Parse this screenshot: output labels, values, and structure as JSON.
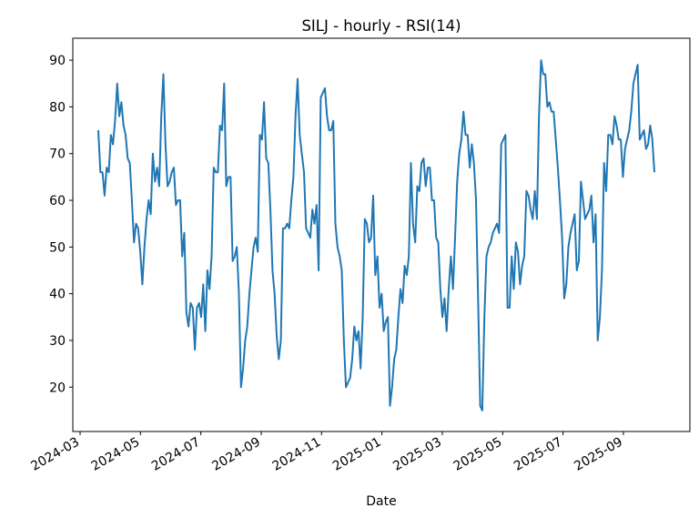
{
  "chart_data": {
    "type": "line",
    "title": "SILJ - hourly - RSI(14)",
    "x_label": "Date",
    "series": [
      {
        "name": "RSI(14)",
        "color": "#1f77b4",
        "values": [
          75,
          66,
          66,
          61,
          67,
          66,
          74,
          72,
          77,
          85,
          78,
          81,
          76,
          74,
          69,
          68,
          60,
          51,
          55,
          54,
          49,
          42,
          50,
          56,
          60,
          57,
          70,
          64,
          67,
          63,
          78,
          87,
          72,
          63,
          64,
          66,
          67,
          59,
          60,
          60,
          48,
          53,
          36,
          33,
          38,
          37,
          28,
          37,
          38,
          35,
          42,
          32,
          45,
          41,
          48,
          67,
          66,
          66,
          76,
          75,
          85,
          63,
          65,
          65,
          47,
          48,
          50,
          40,
          20,
          24,
          30,
          33,
          40,
          45,
          50,
          52,
          49,
          74,
          73,
          81,
          69,
          68,
          58,
          45,
          40,
          31,
          26,
          30,
          54,
          54,
          55,
          54,
          60,
          65,
          78,
          86,
          74,
          70,
          66,
          54,
          53,
          52,
          58,
          55,
          59,
          45,
          82,
          83,
          84,
          78,
          75,
          75,
          77,
          55,
          50,
          48,
          45,
          30,
          20,
          21,
          22,
          26,
          33,
          30,
          32,
          24,
          35,
          56,
          55,
          51,
          52,
          61,
          44,
          48,
          37,
          40,
          32,
          34,
          35,
          16,
          20,
          26,
          28,
          35,
          41,
          38,
          46,
          44,
          48,
          68,
          55,
          51,
          63,
          62,
          68,
          69,
          63,
          67,
          67,
          60,
          60,
          52,
          51,
          41,
          35,
          39,
          32,
          41,
          48,
          41,
          52,
          64,
          70,
          73,
          79,
          74,
          74,
          67,
          72,
          68,
          60,
          39,
          16,
          15,
          35,
          48,
          50,
          51,
          53,
          54,
          55,
          53,
          72,
          73,
          74,
          37,
          37,
          48,
          41,
          51,
          49,
          42,
          46,
          48,
          62,
          61,
          58,
          56,
          62,
          56,
          78,
          90,
          87,
          87,
          80,
          81,
          79,
          79,
          73,
          67,
          60,
          52,
          39,
          42,
          50,
          53,
          55,
          57,
          45,
          47,
          64,
          60,
          56,
          57,
          58,
          61,
          51,
          57,
          30,
          35,
          45,
          68,
          62,
          74,
          74,
          72,
          78,
          76,
          73,
          73,
          65,
          71,
          73,
          75,
          79,
          85,
          87,
          89,
          73,
          74,
          75,
          71,
          72,
          76,
          73,
          66
        ]
      }
    ],
    "xticks": [
      "2024-03",
      "2024-05",
      "2024-07",
      "2024-09",
      "2024-11",
      "2025-01",
      "2025-03",
      "2025-05",
      "2025-07",
      "2025-09"
    ],
    "ylim": [
      10.5,
      94.7
    ],
    "yticks": [
      20,
      30,
      40,
      50,
      60,
      70,
      80,
      90
    ],
    "grid": false
  }
}
